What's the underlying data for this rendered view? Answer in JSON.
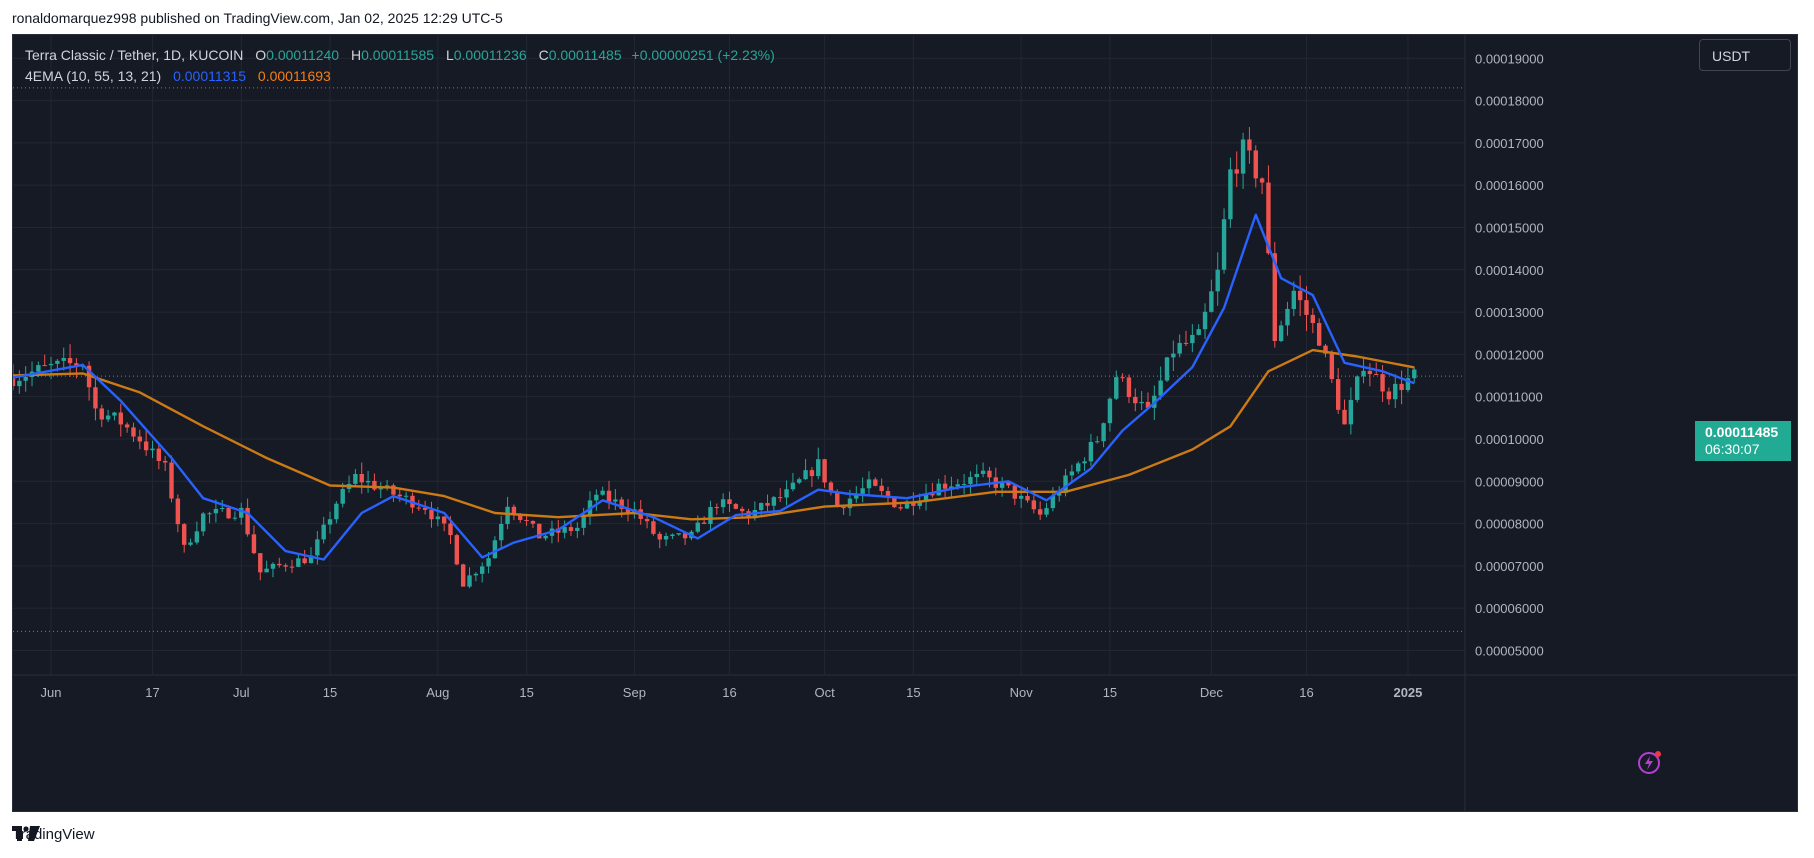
{
  "publisher_line": "ronaldomarquez998 published on TradingView.com, Jan 02, 2025 12:29 UTC-5",
  "legend": {
    "symbol": "Terra Classic / Tether, 1D, KUCOIN",
    "open_label": "O",
    "open": "0.00011240",
    "high_label": "H",
    "high": "0.00011585",
    "low_label": "L",
    "low": "0.00011236",
    "close_label": "C",
    "close": "0.00011485",
    "change": "+0.00000251 (+2.23%)",
    "indicator": "4EMA (10, 55, 13, 21)",
    "ema_fast": "0.00011315",
    "ema_slow": "0.00011693"
  },
  "currency_button": "USDT",
  "last_price": {
    "value": "0.00011485",
    "countdown": "06:30:07"
  },
  "brand": "TradingView",
  "icons": {
    "logo": "tradingview-logo-icon",
    "alert": "lightning-bolt-icon"
  },
  "colors": {
    "up": "#26a69a",
    "down": "#ef5350",
    "ema_fast": "#2962ff",
    "ema_slow": "#cc7a14",
    "background": "#161a25"
  },
  "chart_data": {
    "type": "candlestick",
    "title": "Terra Classic / Tether, 1D, KUCOIN",
    "x_ticks": [
      {
        "label": "Jun",
        "date": "2024-06-01"
      },
      {
        "label": "17",
        "date": "2024-06-17"
      },
      {
        "label": "Jul",
        "date": "2024-07-01"
      },
      {
        "label": "15",
        "date": "2024-07-15"
      },
      {
        "label": "Aug",
        "date": "2024-08-01"
      },
      {
        "label": "15",
        "date": "2024-08-15"
      },
      {
        "label": "Sep",
        "date": "2024-09-01"
      },
      {
        "label": "16",
        "date": "2024-09-16"
      },
      {
        "label": "Oct",
        "date": "2024-10-01"
      },
      {
        "label": "15",
        "date": "2024-10-15"
      },
      {
        "label": "Nov",
        "date": "2024-11-01"
      },
      {
        "label": "15",
        "date": "2024-11-15"
      },
      {
        "label": "Dec",
        "date": "2024-12-01"
      },
      {
        "label": "16",
        "date": "2024-12-16"
      },
      {
        "label": "2025",
        "date": "2025-01-01"
      }
    ],
    "y_ticks": [
      "0.00019000",
      "0.00018000",
      "0.00017000",
      "0.00016000",
      "0.00015000",
      "0.00014000",
      "0.00013000",
      "0.00012000",
      "0.00011000",
      "0.00010000",
      "0.00009000",
      "0.00008000",
      "0.00007000",
      "0.00006000",
      "0.00005000"
    ],
    "ylim": [
      4.42e-05,
      0.0001955
    ],
    "xlim": [
      "2024-05-26",
      "2025-01-10"
    ],
    "range_lines": [
      0.000183,
      5.45e-05
    ],
    "grid": true,
    "candles_close_path": [
      {
        "date": "2024-05-26",
        "close": 0.0001145
      },
      {
        "date": "2024-06-01",
        "close": 0.000117
      },
      {
        "date": "2024-06-06",
        "close": 0.000118
      },
      {
        "date": "2024-06-08",
        "close": 0.000107
      },
      {
        "date": "2024-06-12",
        "close": 0.000104
      },
      {
        "date": "2024-06-15",
        "close": 0.0001
      },
      {
        "date": "2024-06-19",
        "close": 9.3e-05
      },
      {
        "date": "2024-06-22",
        "close": 7.4e-05
      },
      {
        "date": "2024-06-25",
        "close": 8.2e-05
      },
      {
        "date": "2024-07-01",
        "close": 8.3e-05
      },
      {
        "date": "2024-07-04",
        "close": 6.85e-05
      },
      {
        "date": "2024-07-08",
        "close": 7.05e-05
      },
      {
        "date": "2024-07-12",
        "close": 7.2e-05
      },
      {
        "date": "2024-07-16",
        "close": 8.5e-05
      },
      {
        "date": "2024-07-19",
        "close": 9.1e-05
      },
      {
        "date": "2024-07-25",
        "close": 8.7e-05
      },
      {
        "date": "2024-07-30",
        "close": 8.4e-05
      },
      {
        "date": "2024-08-03",
        "close": 7.7e-05
      },
      {
        "date": "2024-08-05",
        "close": 6.6e-05
      },
      {
        "date": "2024-08-09",
        "close": 7.2e-05
      },
      {
        "date": "2024-08-12",
        "close": 8.5e-05
      },
      {
        "date": "2024-08-17",
        "close": 7.7e-05
      },
      {
        "date": "2024-08-23",
        "close": 7.9e-05
      },
      {
        "date": "2024-08-26",
        "close": 8.7e-05
      },
      {
        "date": "2024-09-01",
        "close": 8.3e-05
      },
      {
        "date": "2024-09-05",
        "close": 7.6e-05
      },
      {
        "date": "2024-09-10",
        "close": 7.7e-05
      },
      {
        "date": "2024-09-14",
        "close": 8.5e-05
      },
      {
        "date": "2024-09-19",
        "close": 8.2e-05
      },
      {
        "date": "2024-09-25",
        "close": 8.7e-05
      },
      {
        "date": "2024-09-30",
        "close": 9.4e-05
      },
      {
        "date": "2024-10-03",
        "close": 8.4e-05
      },
      {
        "date": "2024-10-08",
        "close": 8.9e-05
      },
      {
        "date": "2024-10-13",
        "close": 8.4e-05
      },
      {
        "date": "2024-10-19",
        "close": 8.9e-05
      },
      {
        "date": "2024-10-26",
        "close": 9.1e-05
      },
      {
        "date": "2024-10-30",
        "close": 8.8e-05
      },
      {
        "date": "2024-11-04",
        "close": 8.2e-05
      },
      {
        "date": "2024-11-09",
        "close": 9.2e-05
      },
      {
        "date": "2024-11-13",
        "close": 0.0001
      },
      {
        "date": "2024-11-16",
        "close": 0.000115
      },
      {
        "date": "2024-11-21",
        "close": 0.000106
      },
      {
        "date": "2024-11-25",
        "close": 0.000121
      },
      {
        "date": "2024-11-29",
        "close": 0.000124
      },
      {
        "date": "2024-12-02",
        "close": 0.000139
      },
      {
        "date": "2024-12-04",
        "close": 0.000163
      },
      {
        "date": "2024-12-06",
        "close": 0.000168
      },
      {
        "date": "2024-12-09",
        "close": 0.000161
      },
      {
        "date": "2024-12-11",
        "close": 0.000124
      },
      {
        "date": "2024-12-14",
        "close": 0.000135
      },
      {
        "date": "2024-12-18",
        "close": 0.000124
      },
      {
        "date": "2024-12-22",
        "close": 0.000103
      },
      {
        "date": "2024-12-25",
        "close": 0.000118
      },
      {
        "date": "2024-12-29",
        "close": 0.000111
      },
      {
        "date": "2025-01-02",
        "close": 0.00011485
      }
    ],
    "series": [
      {
        "values_ref": "ema_fast"
      },
      {
        "values_ref": "ema_slow"
      }
    ],
    "ema_fast": [
      {
        "date": "2024-05-26",
        "value": 0.0001145
      },
      {
        "date": "2024-06-06",
        "value": 0.0001175
      },
      {
        "date": "2024-06-12",
        "value": 0.000109
      },
      {
        "date": "2024-06-20",
        "value": 9.55e-05
      },
      {
        "date": "2024-06-25",
        "value": 8.6e-05
      },
      {
        "date": "2024-07-02",
        "value": 8.25e-05
      },
      {
        "date": "2024-07-08",
        "value": 7.35e-05
      },
      {
        "date": "2024-07-14",
        "value": 7.15e-05
      },
      {
        "date": "2024-07-20",
        "value": 8.25e-05
      },
      {
        "date": "2024-07-25",
        "value": 8.65e-05
      },
      {
        "date": "2024-08-02",
        "value": 8.25e-05
      },
      {
        "date": "2024-08-08",
        "value": 7.2e-05
      },
      {
        "date": "2024-08-13",
        "value": 7.55e-05
      },
      {
        "date": "2024-08-20",
        "value": 7.85e-05
      },
      {
        "date": "2024-08-27",
        "value": 8.55e-05
      },
      {
        "date": "2024-09-04",
        "value": 8.15e-05
      },
      {
        "date": "2024-09-11",
        "value": 7.65e-05
      },
      {
        "date": "2024-09-17",
        "value": 8.2e-05
      },
      {
        "date": "2024-09-24",
        "value": 8.3e-05
      },
      {
        "date": "2024-09-30",
        "value": 8.8e-05
      },
      {
        "date": "2024-10-05",
        "value": 8.7e-05
      },
      {
        "date": "2024-10-14",
        "value": 8.6e-05
      },
      {
        "date": "2024-10-22",
        "value": 8.85e-05
      },
      {
        "date": "2024-10-30",
        "value": 9e-05
      },
      {
        "date": "2024-11-05",
        "value": 8.55e-05
      },
      {
        "date": "2024-11-12",
        "value": 9.3e-05
      },
      {
        "date": "2024-11-17",
        "value": 0.000102
      },
      {
        "date": "2024-11-22",
        "value": 0.0001085
      },
      {
        "date": "2024-11-28",
        "value": 0.000117
      },
      {
        "date": "2024-12-03",
        "value": 0.000131
      },
      {
        "date": "2024-12-08",
        "value": 0.000153
      },
      {
        "date": "2024-12-12",
        "value": 0.000138
      },
      {
        "date": "2024-12-17",
        "value": 0.000134
      },
      {
        "date": "2024-12-22",
        "value": 0.000118
      },
      {
        "date": "2024-12-28",
        "value": 0.000116
      },
      {
        "date": "2025-01-02",
        "value": 0.00011315
      }
    ],
    "ema_slow": [
      {
        "date": "2024-05-26",
        "value": 0.000115
      },
      {
        "date": "2024-06-06",
        "value": 0.0001155
      },
      {
        "date": "2024-06-15",
        "value": 0.000111
      },
      {
        "date": "2024-06-25",
        "value": 0.000103
      },
      {
        "date": "2024-07-05",
        "value": 9.55e-05
      },
      {
        "date": "2024-07-15",
        "value": 8.9e-05
      },
      {
        "date": "2024-07-25",
        "value": 8.85e-05
      },
      {
        "date": "2024-08-02",
        "value": 8.65e-05
      },
      {
        "date": "2024-08-10",
        "value": 8.25e-05
      },
      {
        "date": "2024-08-20",
        "value": 8.15e-05
      },
      {
        "date": "2024-09-01",
        "value": 8.25e-05
      },
      {
        "date": "2024-09-10",
        "value": 8.1e-05
      },
      {
        "date": "2024-09-20",
        "value": 8.15e-05
      },
      {
        "date": "2024-10-01",
        "value": 8.4e-05
      },
      {
        "date": "2024-10-15",
        "value": 8.5e-05
      },
      {
        "date": "2024-10-28",
        "value": 8.75e-05
      },
      {
        "date": "2024-11-08",
        "value": 8.75e-05
      },
      {
        "date": "2024-11-18",
        "value": 9.15e-05
      },
      {
        "date": "2024-11-28",
        "value": 9.75e-05
      },
      {
        "date": "2024-12-04",
        "value": 0.000103
      },
      {
        "date": "2024-12-10",
        "value": 0.000116
      },
      {
        "date": "2024-12-17",
        "value": 0.000121
      },
      {
        "date": "2024-12-24",
        "value": 0.0001195
      },
      {
        "date": "2025-01-02",
        "value": 0.00011693
      }
    ]
  }
}
